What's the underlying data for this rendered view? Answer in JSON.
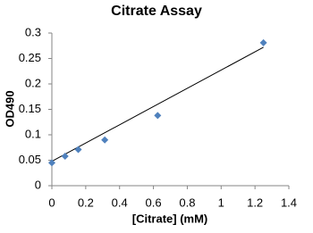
{
  "chart_data": {
    "type": "scatter",
    "title": "Citrate Assay",
    "x_label": "[Citrate] (mM)",
    "y_label": "OD490",
    "series": [
      {
        "color": "#4f81bd",
        "x": [
          0,
          0.078,
          0.156,
          0.3125,
          0.625,
          1.25
        ],
        "values": [
          0.045,
          0.058,
          0.071,
          0.09,
          0.138,
          0.281
        ]
      }
    ],
    "trendline": {
      "color": "#000000",
      "x": [
        0,
        1.25
      ],
      "y": [
        0.048,
        0.272
      ]
    },
    "xlim": [
      0,
      1.4
    ],
    "xticks": [
      0,
      0.2,
      0.4,
      0.6,
      0.8,
      1,
      1.2,
      1.4
    ],
    "ylim": [
      0,
      0.3
    ],
    "yticks": [
      0,
      0.05,
      0.1,
      0.15,
      0.2,
      0.25,
      0.3
    ],
    "grid": false
  }
}
